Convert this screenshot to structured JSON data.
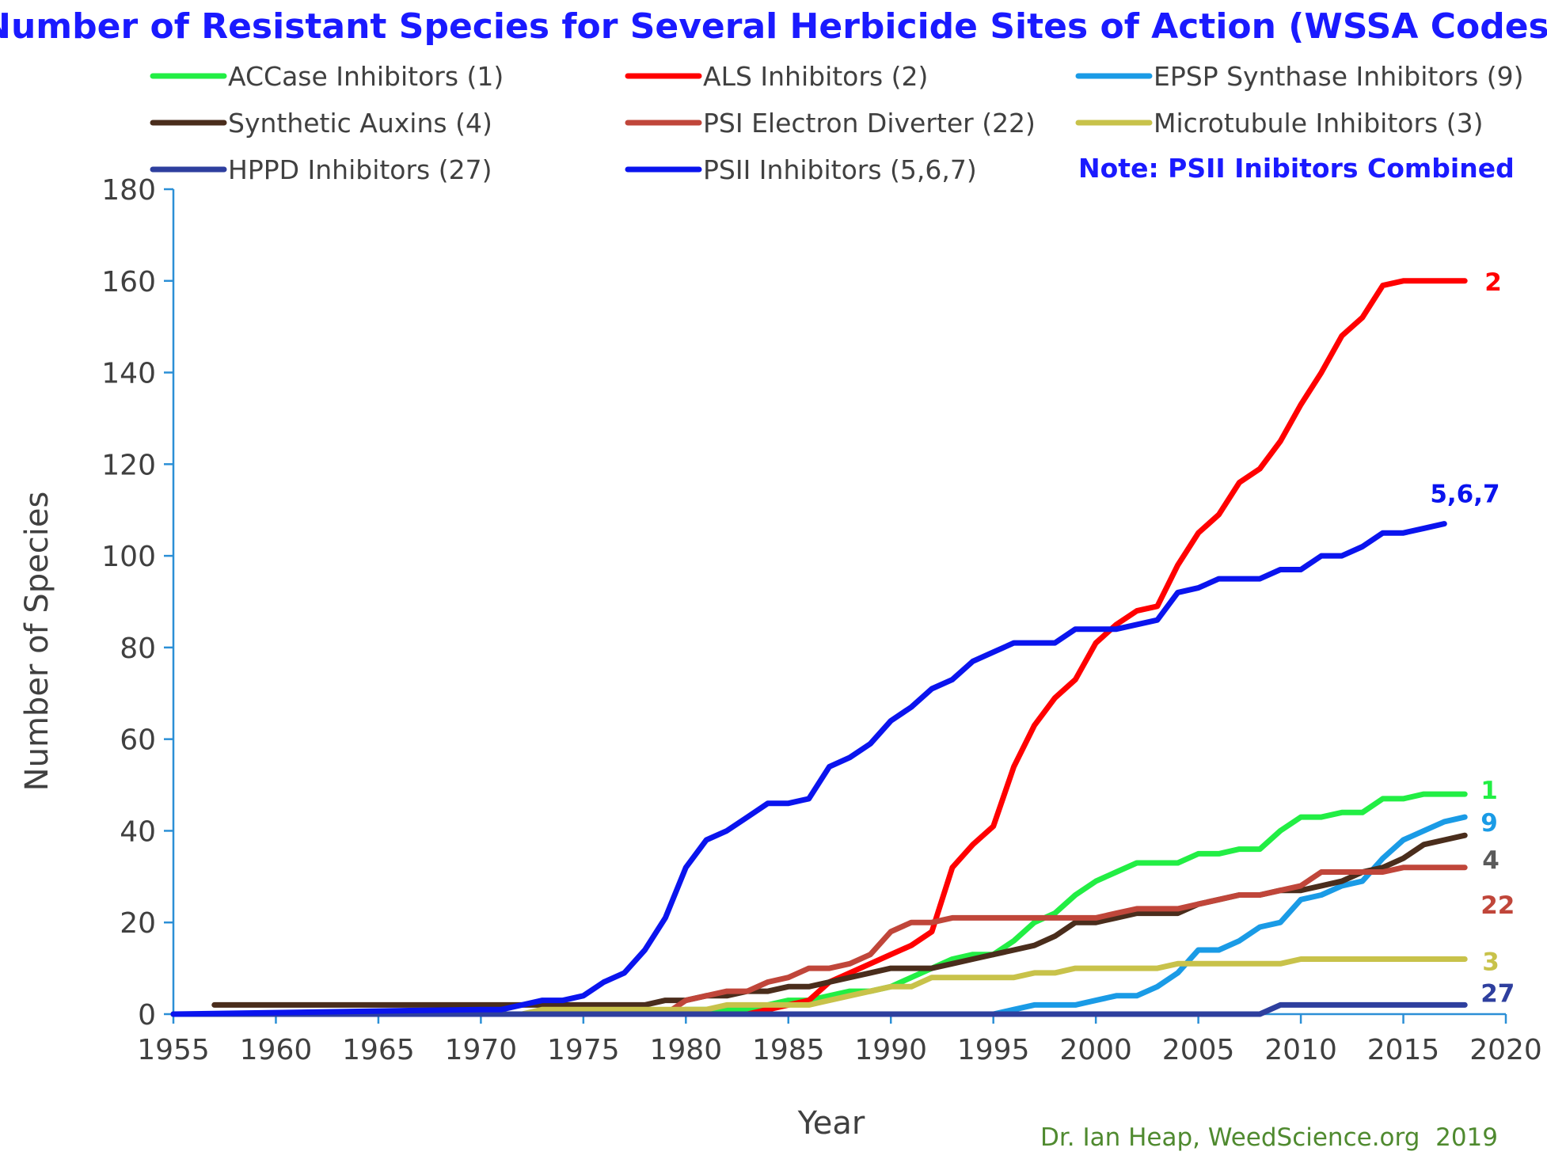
{
  "chart_data": {
    "type": "line",
    "title": "Number of Resistant Species for Several Herbicide Sites of Action (WSSA Codes)",
    "xlabel": "Year",
    "ylabel": "Number of Species",
    "xlim": [
      1955,
      2020
    ],
    "ylim": [
      0,
      180
    ],
    "xticks": [
      1955,
      1960,
      1965,
      1970,
      1975,
      1980,
      1985,
      1990,
      1995,
      2000,
      2005,
      2010,
      2015,
      2020
    ],
    "yticks": [
      0,
      20,
      40,
      60,
      80,
      100,
      120,
      140,
      160,
      180
    ],
    "legend_placement": "top",
    "note": "Note: PSII Inibitors Combined",
    "credit": "Dr. Ian Heap, WeedScience.org  2019",
    "series": [
      {
        "name": "ACCase Inhibitors (1)",
        "color": "#22ee44",
        "end_label": "1",
        "x": [
          1955,
          1979,
          1980,
          1981,
          1982,
          1983,
          1984,
          1985,
          1986,
          1987,
          1988,
          1989,
          1990,
          1991,
          1992,
          1993,
          1994,
          1995,
          1996,
          1997,
          1998,
          1999,
          2000,
          2001,
          2002,
          2003,
          2004,
          2005,
          2006,
          2007,
          2008,
          2009,
          2010,
          2011,
          2012,
          2013,
          2014,
          2015,
          2016,
          2017,
          2018
        ],
        "y": [
          0,
          0,
          1,
          1,
          1,
          1,
          2,
          3,
          3,
          4,
          5,
          5,
          6,
          8,
          10,
          12,
          13,
          13,
          16,
          20,
          22,
          26,
          29,
          31,
          33,
          33,
          33,
          35,
          35,
          36,
          36,
          40,
          43,
          43,
          44,
          44,
          47,
          47,
          48,
          48,
          48
        ]
      },
      {
        "name": "ALS Inhibitors (2)",
        "color": "#ff0000",
        "end_label": "2",
        "x": [
          1955,
          1981,
          1982,
          1983,
          1984,
          1985,
          1986,
          1987,
          1988,
          1989,
          1990,
          1991,
          1992,
          1993,
          1994,
          1995,
          1996,
          1997,
          1998,
          1999,
          2000,
          2001,
          2002,
          2003,
          2004,
          2005,
          2006,
          2007,
          2008,
          2009,
          2010,
          2011,
          2012,
          2013,
          2014,
          2015,
          2016,
          2017,
          2018
        ],
        "y": [
          0,
          0,
          0,
          0,
          1,
          2,
          3,
          7,
          9,
          11,
          13,
          15,
          18,
          32,
          37,
          41,
          54,
          63,
          69,
          73,
          81,
          85,
          88,
          89,
          98,
          105,
          109,
          116,
          119,
          125,
          133,
          140,
          148,
          152,
          159,
          160,
          160,
          160,
          160
        ]
      },
      {
        "name": "EPSP Synthase Inhibitors (9)",
        "color": "#1a9be6",
        "end_label": "9",
        "x": [
          1955,
          1995,
          1996,
          1997,
          1998,
          1999,
          2000,
          2001,
          2002,
          2003,
          2004,
          2005,
          2006,
          2007,
          2008,
          2009,
          2010,
          2011,
          2012,
          2013,
          2014,
          2015,
          2016,
          2017,
          2018
        ],
        "y": [
          0,
          0,
          1,
          2,
          2,
          2,
          3,
          4,
          4,
          6,
          9,
          14,
          14,
          16,
          19,
          20,
          25,
          26,
          28,
          29,
          34,
          38,
          40,
          42,
          43
        ]
      },
      {
        "name": "Synthetic Auxins (4)",
        "color": "#4a2d1c",
        "end_label": "4",
        "x": [
          1957,
          1978,
          1979,
          1980,
          1981,
          1982,
          1983,
          1984,
          1985,
          1986,
          1987,
          1988,
          1989,
          1990,
          1991,
          1992,
          1993,
          1994,
          1995,
          1996,
          1997,
          1998,
          1999,
          2000,
          2001,
          2002,
          2003,
          2004,
          2005,
          2006,
          2007,
          2008,
          2009,
          2010,
          2011,
          2012,
          2013,
          2014,
          2015,
          2016,
          2017,
          2018
        ],
        "y": [
          2,
          2,
          3,
          3,
          4,
          4,
          5,
          5,
          6,
          6,
          7,
          8,
          9,
          10,
          10,
          10,
          11,
          12,
          13,
          14,
          15,
          17,
          20,
          20,
          21,
          22,
          22,
          22,
          24,
          25,
          26,
          26,
          27,
          27,
          28,
          29,
          31,
          32,
          34,
          37,
          38,
          39
        ]
      },
      {
        "name": "PSI Electron Diverter (22)",
        "color": "#c0463a",
        "end_label": "22",
        "x": [
          1955,
          1979,
          1980,
          1981,
          1982,
          1983,
          1984,
          1985,
          1986,
          1987,
          1988,
          1989,
          1990,
          1991,
          1992,
          1993,
          1994,
          1995,
          1996,
          1997,
          1998,
          1999,
          2000,
          2001,
          2002,
          2003,
          2004,
          2005,
          2006,
          2007,
          2008,
          2009,
          2010,
          2011,
          2012,
          2013,
          2014,
          2015,
          2016,
          2017,
          2018
        ],
        "y": [
          0,
          0,
          3,
          4,
          5,
          5,
          7,
          8,
          10,
          10,
          11,
          13,
          18,
          20,
          20,
          21,
          21,
          21,
          21,
          21,
          21,
          21,
          21,
          22,
          23,
          23,
          23,
          24,
          25,
          26,
          26,
          27,
          28,
          31,
          31,
          31,
          31,
          32,
          32,
          32,
          32
        ]
      },
      {
        "name": "Microtubule Inhibitors (3)",
        "color": "#c8c24a",
        "end_label": "3",
        "x": [
          1955,
          1972,
          1973,
          1980,
          1981,
          1982,
          1983,
          1984,
          1985,
          1986,
          1987,
          1988,
          1989,
          1990,
          1991,
          1992,
          1993,
          1994,
          1995,
          1996,
          1997,
          1998,
          1999,
          2000,
          2001,
          2002,
          2003,
          2004,
          2005,
          2006,
          2007,
          2008,
          2009,
          2010,
          2011,
          2012,
          2013,
          2014,
          2015,
          2016,
          2017,
          2018
        ],
        "y": [
          0,
          0,
          1,
          1,
          1,
          2,
          2,
          2,
          2,
          2,
          3,
          4,
          5,
          6,
          6,
          8,
          8,
          8,
          8,
          8,
          9,
          9,
          10,
          10,
          10,
          10,
          10,
          11,
          11,
          11,
          11,
          11,
          11,
          12,
          12,
          12,
          12,
          12,
          12,
          12,
          12,
          12
        ]
      },
      {
        "name": "HPPD Inhibitors (27)",
        "color": "#2e3f9e",
        "end_label": "27",
        "x": [
          1955,
          2008,
          2009,
          2010,
          2011,
          2012,
          2013,
          2014,
          2015,
          2016,
          2017,
          2018
        ],
        "y": [
          0,
          0,
          2,
          2,
          2,
          2,
          2,
          2,
          2,
          2,
          2,
          2
        ]
      },
      {
        "name": "PSII Inhibitors (5,6,7)",
        "color": "#0a14ee",
        "end_label": "5,6,7",
        "x": [
          1955,
          1970,
          1971,
          1972,
          1973,
          1974,
          1975,
          1976,
          1977,
          1978,
          1979,
          1980,
          1981,
          1982,
          1983,
          1984,
          1985,
          1986,
          1987,
          1988,
          1989,
          1990,
          1991,
          1992,
          1993,
          1994,
          1995,
          1996,
          1997,
          1998,
          1999,
          2000,
          2001,
          2002,
          2003,
          2004,
          2005,
          2006,
          2007,
          2008,
          2009,
          2010,
          2011,
          2012,
          2013,
          2014,
          2015,
          2016,
          2017
        ],
        "y": [
          0,
          1,
          1,
          2,
          3,
          3,
          4,
          7,
          9,
          14,
          21,
          32,
          38,
          40,
          43,
          46,
          46,
          47,
          54,
          56,
          59,
          64,
          67,
          71,
          73,
          77,
          79,
          81,
          81,
          81,
          84,
          84,
          84,
          85,
          86,
          92,
          93,
          95,
          95,
          95,
          97,
          97,
          100,
          100,
          102,
          105,
          105,
          106,
          107
        ]
      }
    ]
  }
}
